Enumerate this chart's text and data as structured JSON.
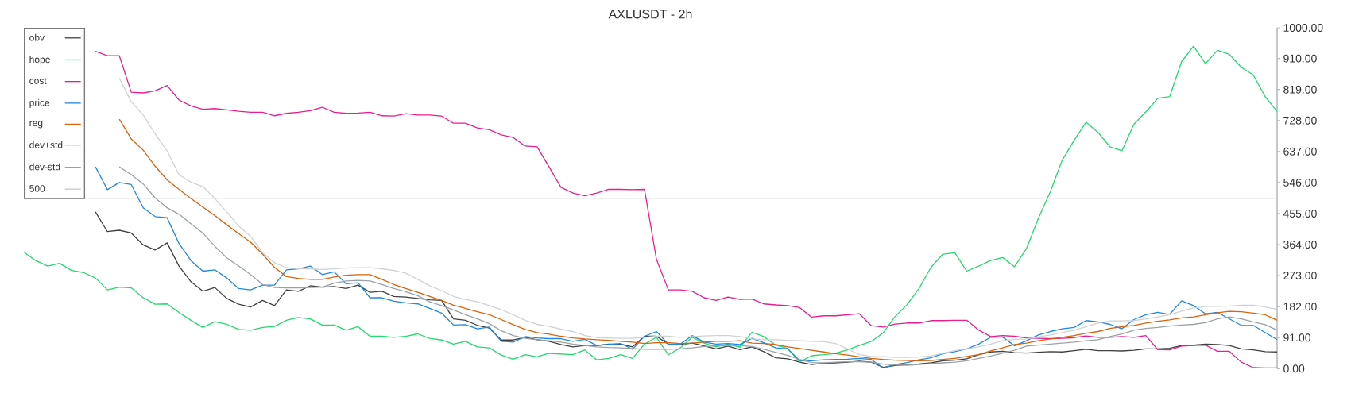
{
  "chart_data": {
    "type": "line",
    "title": "AXLUSDT - 2h",
    "categories": [
      null,
      null,
      null,
      null,
      null,
      null,
      null,
      null,
      null,
      null,
      null,
      null,
      null,
      null,
      null,
      null,
      null,
      null,
      null,
      null,
      null,
      null,
      null,
      null,
      null,
      null,
      null,
      null,
      null,
      null,
      null,
      null,
      null,
      null,
      null,
      null,
      null,
      null,
      null,
      null,
      null,
      null,
      null,
      null,
      null,
      null,
      null,
      null,
      null,
      null,
      null,
      null,
      null,
      null,
      null,
      null,
      null,
      null,
      null,
      null,
      null,
      null,
      null,
      null,
      null,
      null,
      null,
      null,
      null,
      null,
      null,
      null,
      null,
      null,
      null,
      null,
      null,
      null,
      null,
      null,
      null,
      null,
      null,
      null,
      null,
      null,
      null,
      null,
      null,
      null,
      null,
      null,
      null,
      null,
      null,
      null,
      null,
      null,
      null,
      null,
      null,
      null,
      null,
      null,
      null,
      null
    ],
    "series": [
      {
        "name": "obv",
        "color": "#404040",
        "values": [
          null,
          null,
          null,
          null,
          null,
          null,
          460,
          402,
          406,
          398,
          363,
          348,
          369,
          301,
          255,
          227,
          238,
          206,
          189,
          181,
          200,
          185,
          231,
          227,
          243,
          239,
          241,
          235,
          245,
          224,
          227,
          212,
          210,
          206,
          202,
          200,
          146,
          142,
          127,
          119,
          84,
          84,
          92,
          85,
          80,
          71,
          64,
          68,
          68,
          72,
          72,
          64,
          95,
          95,
          72,
          71,
          75,
          67,
          58,
          66,
          56,
          64,
          50,
          32,
          29,
          19,
          12,
          16,
          17,
          19,
          22,
          19,
          4,
          9,
          12,
          14,
          17,
          23,
          25,
          29,
          41,
          49,
          51,
          47,
          46,
          48,
          50,
          49,
          53,
          57,
          53,
          53,
          52,
          54,
          58,
          58,
          60,
          68,
          69,
          72,
          71,
          68,
          58,
          55,
          50,
          49
        ]
      },
      {
        "name": "hope",
        "color": "#22d96e",
        "values": [
          342,
          317,
          301,
          309,
          288,
          282,
          266,
          231,
          239,
          237,
          208,
          189,
          190,
          165,
          142,
          121,
          138,
          130,
          115,
          113,
          121,
          124,
          142,
          150,
          146,
          128,
          128,
          113,
          123,
          95,
          95,
          92,
          95,
          102,
          89,
          84,
          72,
          80,
          64,
          61,
          40,
          28,
          41,
          35,
          45,
          43,
          41,
          55,
          26,
          30,
          41,
          30,
          72,
          92,
          41,
          61,
          92,
          75,
          64,
          72,
          63,
          107,
          94,
          69,
          59,
          20,
          38,
          41,
          45,
          55,
          68,
          80,
          105,
          153,
          188,
          235,
          297,
          336,
          340,
          286,
          301,
          317,
          326,
          299,
          352,
          441,
          519,
          612,
          670,
          723,
          693,
          651,
          639,
          717,
          753,
          793,
          798,
          901,
          946,
          895,
          934,
          922,
          884,
          862,
          798,
          755
        ]
      },
      {
        "name": "cost",
        "color": "#e91e8c",
        "values": [
          null,
          null,
          null,
          null,
          null,
          null,
          931,
          918,
          918,
          811,
          809,
          815,
          831,
          788,
          771,
          761,
          763,
          759,
          755,
          752,
          752,
          742,
          749,
          752,
          757,
          767,
          752,
          749,
          750,
          752,
          742,
          741,
          748,
          744,
          744,
          741,
          720,
          720,
          706,
          701,
          686,
          678,
          653,
          651,
          592,
          532,
          515,
          507,
          515,
          526,
          526,
          525,
          526,
          321,
          231,
          231,
          227,
          208,
          200,
          210,
          203,
          204,
          190,
          187,
          185,
          179,
          151,
          155,
          155,
          158,
          161,
          126,
          122,
          131,
          134,
          134,
          141,
          141,
          142,
          142,
          113,
          94,
          97,
          95,
          90,
          89,
          88,
          89,
          91,
          96,
          92,
          92,
          94,
          92,
          97,
          56,
          55,
          66,
          68,
          69,
          51,
          51,
          19,
          3,
          2,
          2
        ]
      },
      {
        "name": "price",
        "color": "#1e88e5",
        "values": [
          null,
          null,
          null,
          null,
          null,
          null,
          592,
          525,
          546,
          540,
          472,
          446,
          443,
          367,
          317,
          286,
          290,
          266,
          235,
          231,
          245,
          245,
          290,
          293,
          301,
          276,
          284,
          249,
          252,
          208,
          208,
          198,
          193,
          190,
          177,
          163,
          128,
          129,
          117,
          122,
          80,
          78,
          94,
          90,
          88,
          88,
          80,
          86,
          68,
          71,
          74,
          57,
          95,
          109,
          72,
          72,
          97,
          78,
          72,
          74,
          71,
          89,
          76,
          61,
          58,
          24,
          23,
          26,
          27,
          28,
          30,
          27,
          2,
          12,
          18,
          26,
          32,
          44,
          50,
          58,
          72,
          92,
          93,
          67,
          82,
          99,
          109,
          117,
          121,
          141,
          137,
          130,
          117,
          144,
          158,
          165,
          159,
          199,
          185,
          161,
          165,
          146,
          127,
          127,
          106,
          85
        ]
      },
      {
        "name": "reg",
        "color": "#dd6108",
        "values": [
          null,
          null,
          null,
          null,
          null,
          null,
          null,
          null,
          732,
          674,
          641,
          594,
          554,
          526,
          499,
          474,
          449,
          422,
          396,
          371,
          336,
          297,
          270,
          265,
          262,
          262,
          269,
          274,
          276,
          276,
          262,
          247,
          235,
          224,
          212,
          200,
          186,
          177,
          167,
          158,
          144,
          129,
          115,
          106,
          101,
          95,
          90,
          87,
          85,
          83,
          80,
          78,
          74,
          76,
          76,
          74,
          75,
          78,
          80,
          80,
          82,
          75,
          74,
          71,
          64,
          59,
          54,
          49,
          44,
          40,
          35,
          30,
          27,
          25,
          24,
          23,
          24,
          27,
          30,
          36,
          41,
          52,
          61,
          71,
          75,
          82,
          87,
          92,
          97,
          104,
          109,
          118,
          123,
          127,
          134,
          139,
          143,
          149,
          152,
          158,
          164,
          168,
          167,
          163,
          158,
          142
        ]
      },
      {
        "name": "dev+std",
        "color": "#cdd2d7",
        "values": [
          null,
          null,
          null,
          null,
          null,
          null,
          null,
          null,
          852,
          783,
          744,
          689,
          639,
          569,
          547,
          534,
          499,
          460,
          418,
          388,
          340,
          311,
          296,
          293,
          293,
          291,
          293,
          295,
          296,
          296,
          293,
          288,
          280,
          262,
          243,
          229,
          212,
          203,
          196,
          185,
          173,
          158,
          142,
          130,
          124,
          116,
          109,
          97,
          91,
          90,
          89,
          89,
          92,
          95,
          95,
          92,
          94,
          96,
          97,
          97,
          94,
          87,
          85,
          85,
          83,
          82,
          80,
          79,
          74,
          58,
          41,
          36,
          35,
          33,
          33,
          34,
          37,
          45,
          53,
          58,
          64,
          72,
          82,
          86,
          87,
          93,
          99,
          106,
          113,
          123,
          134,
          140,
          140,
          141,
          146,
          152,
          158,
          169,
          178,
          182,
          183,
          184,
          186,
          186,
          181,
          174
        ]
      },
      {
        "name": "dev-std",
        "color": "#9aa2a9",
        "values": [
          null,
          null,
          null,
          null,
          null,
          null,
          null,
          null,
          592,
          569,
          542,
          501,
          472,
          453,
          425,
          398,
          359,
          325,
          301,
          276,
          247,
          238,
          237,
          237,
          238,
          239,
          251,
          257,
          259,
          257,
          247,
          235,
          226,
          214,
          196,
          185,
          172,
          158,
          146,
          132,
          111,
          97,
          89,
          85,
          82,
          78,
          72,
          68,
          64,
          62,
          61,
          59,
          57,
          57,
          57,
          58,
          61,
          65,
          67,
          68,
          68,
          65,
          57,
          48,
          39,
          27,
          18,
          17,
          19,
          20,
          20,
          19,
          13,
          11,
          10,
          12,
          15,
          17,
          19,
          23,
          30,
          37,
          45,
          54,
          66,
          69,
          72,
          75,
          78,
          82,
          85,
          94,
          102,
          113,
          118,
          121,
          125,
          128,
          130,
          135,
          146,
          152,
          146,
          137,
          129,
          113
        ]
      }
    ],
    "ref_lines": [
      {
        "axis": "y",
        "value": 500,
        "label": "500",
        "color": "#c6c6c6"
      }
    ],
    "ylim": [
      0,
      1000
    ],
    "yticks": [
      {
        "value": 0,
        "label": "0.00"
      },
      {
        "value": 91,
        "label": "91.00"
      },
      {
        "value": 182,
        "label": "182.00"
      },
      {
        "value": 273,
        "label": "273.00"
      },
      {
        "value": 364,
        "label": "364.00"
      },
      {
        "value": 455,
        "label": "455.00"
      },
      {
        "value": 546,
        "label": "546.00"
      },
      {
        "value": 637,
        "label": "637.00"
      },
      {
        "value": 728,
        "label": "728.00"
      },
      {
        "value": 819,
        "label": "819.00"
      },
      {
        "value": 910,
        "label": "910.00"
      },
      {
        "value": 1000,
        "label": "1000.00"
      }
    ],
    "tick_labels": "y",
    "legend": "top left"
  }
}
